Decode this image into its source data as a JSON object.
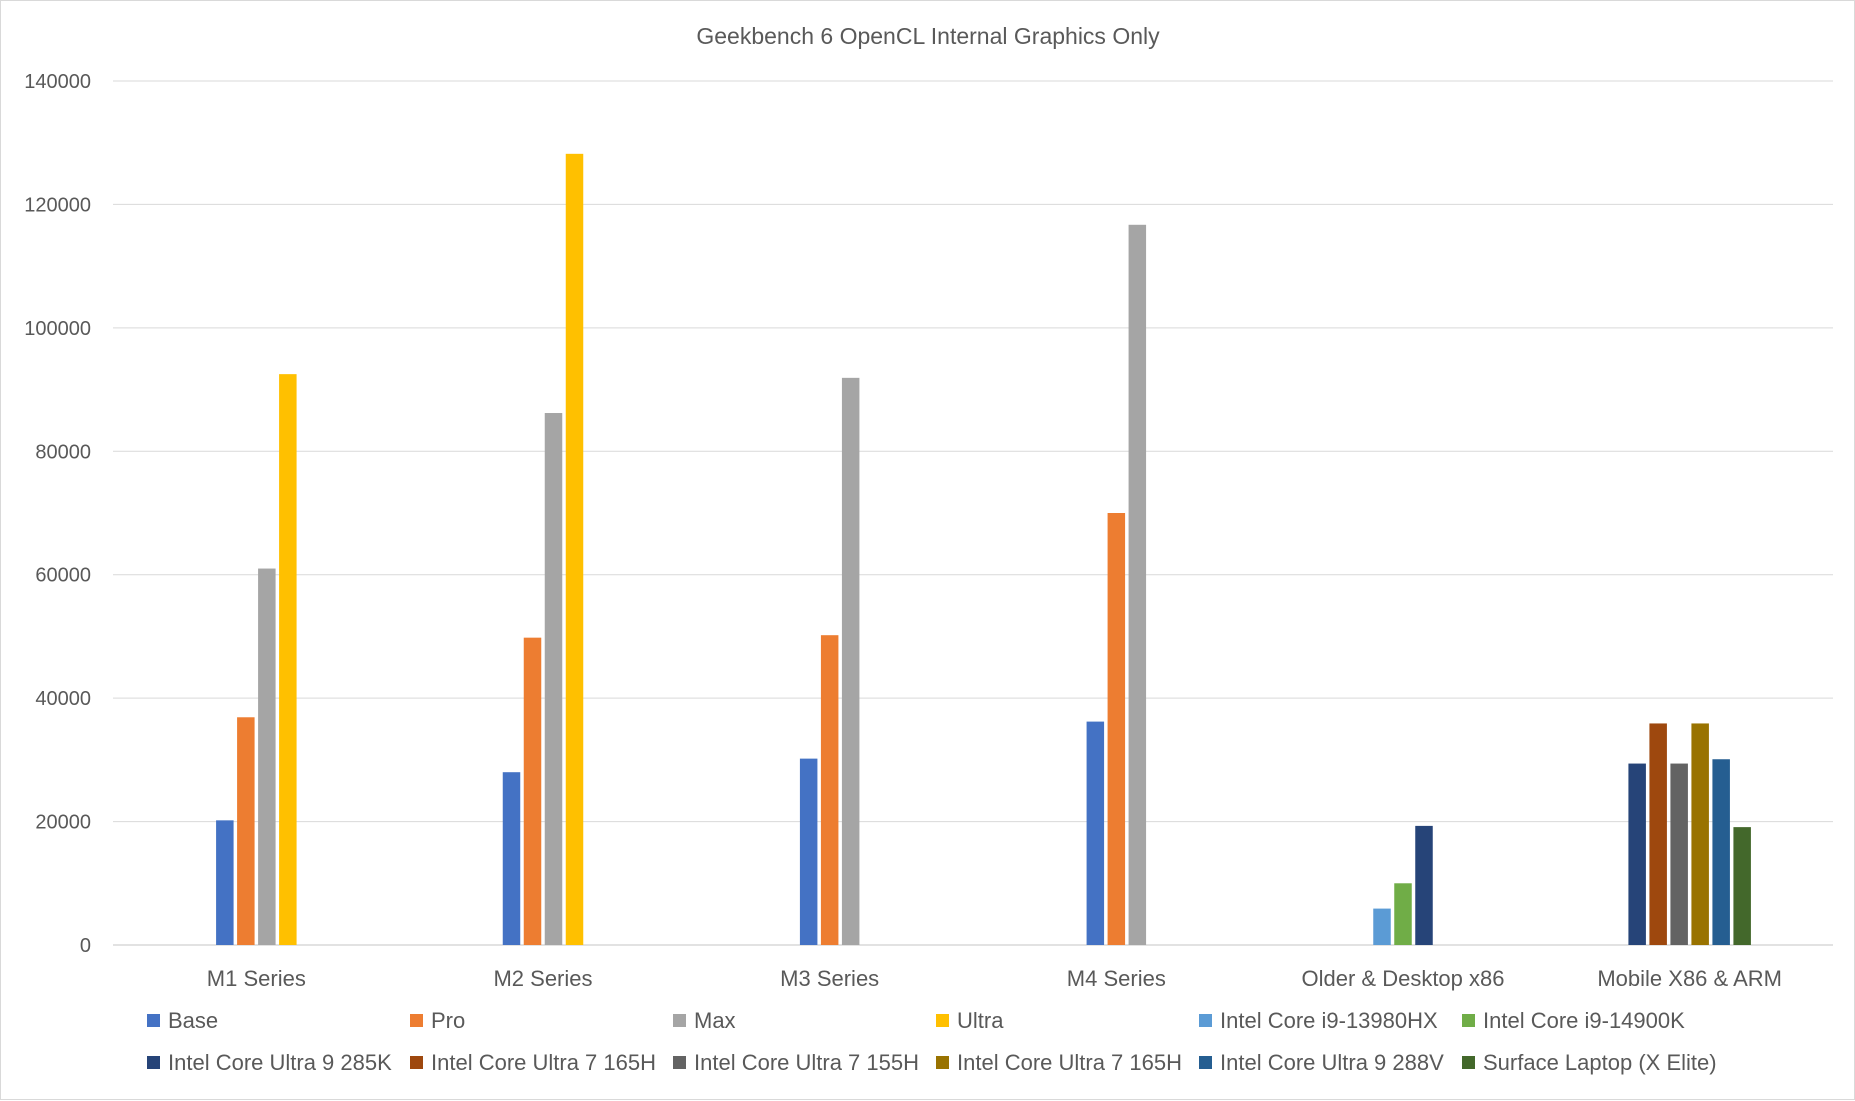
{
  "chart_data": {
    "type": "bar",
    "title": "Geekbench 6 OpenCL Internal Graphics Only",
    "xlabel": "",
    "ylabel": "",
    "ylim": [
      0,
      140000
    ],
    "yticks": [
      0,
      20000,
      40000,
      60000,
      80000,
      100000,
      120000,
      140000
    ],
    "grid": true,
    "legend_position": "bottom",
    "categories": [
      "M1 Series",
      "M2 Series",
      "M3 Series",
      "M4 Series",
      "Older & Desktop x86",
      "Mobile X86 & ARM"
    ],
    "series": [
      {
        "name": "Base",
        "color": "#4472c4",
        "values": [
          20200,
          28000,
          30200,
          36200,
          null,
          null
        ]
      },
      {
        "name": "Pro",
        "color": "#ed7d31",
        "values": [
          36900,
          49800,
          50200,
          70000,
          null,
          null
        ]
      },
      {
        "name": "Max",
        "color": "#a5a5a5",
        "values": [
          61000,
          86200,
          91900,
          116700,
          null,
          null
        ]
      },
      {
        "name": "Ultra",
        "color": "#ffc000",
        "values": [
          92500,
          128200,
          null,
          null,
          null,
          null
        ]
      },
      {
        "name": "Intel Core i9-13980HX",
        "color": "#5b9bd5",
        "values": [
          null,
          null,
          null,
          null,
          5900,
          null
        ]
      },
      {
        "name": "Intel Core i9-14900K",
        "color": "#70ad47",
        "values": [
          null,
          null,
          null,
          null,
          10000,
          null
        ]
      },
      {
        "name": "Intel Core Ultra 9 285K",
        "color": "#264478",
        "values": [
          null,
          null,
          null,
          null,
          19300,
          29400
        ]
      },
      {
        "name": "Intel Core Ultra 7 165H",
        "color": "#9e480e",
        "values": [
          null,
          null,
          null,
          null,
          null,
          35900
        ]
      },
      {
        "name": "Intel Core Ultra 7 155H",
        "color": "#636363",
        "values": [
          null,
          null,
          null,
          null,
          null,
          29400
        ]
      },
      {
        "name": "Intel Core Ultra 7 165H",
        "color": "#997300",
        "values": [
          null,
          null,
          null,
          null,
          null,
          35900
        ]
      },
      {
        "name": "Intel Core Ultra 9 288V",
        "color": "#255e91",
        "values": [
          null,
          null,
          null,
          null,
          null,
          30100
        ]
      },
      {
        "name": "Surface Laptop (X Elite)",
        "color": "#43682b",
        "values": [
          null,
          null,
          null,
          null,
          null,
          19100
        ]
      }
    ]
  }
}
